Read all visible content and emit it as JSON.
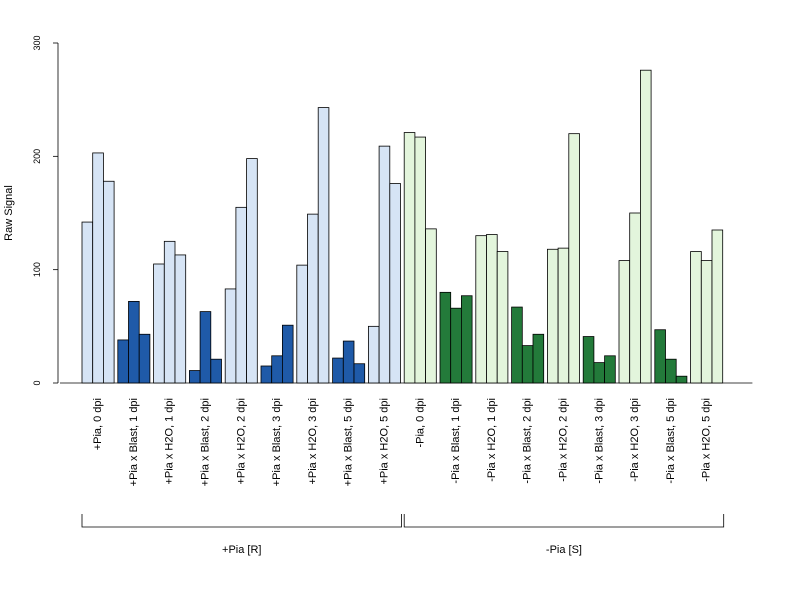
{
  "chart_data": {
    "type": "bar",
    "ylabel": "Raw Signal",
    "ylim": [
      0,
      300
    ],
    "yticks": [
      0,
      100,
      200,
      300
    ],
    "colors": {
      "plus_light": "#d6e4f5",
      "plus_dark": "#1f5aa8",
      "minus_light": "#e3f5dc",
      "minus_dark": "#237a3a"
    },
    "categories": [
      {
        "label": "+Pia, 0 dpi",
        "values": [
          142,
          203,
          178
        ],
        "color": "plus_light"
      },
      {
        "label": "+Pia x Blast, 1 dpi",
        "values": [
          38,
          72,
          43
        ],
        "color": "plus_dark"
      },
      {
        "label": "+Pia x H2O, 1 dpi",
        "values": [
          105,
          125,
          113
        ],
        "color": "plus_light"
      },
      {
        "label": "+Pia x Blast, 2 dpi",
        "values": [
          11,
          63,
          21
        ],
        "color": "plus_dark"
      },
      {
        "label": "+Pia x H2O, 2 dpi",
        "values": [
          83,
          155,
          198
        ],
        "color": "plus_light"
      },
      {
        "label": "+Pia x Blast, 3 dpi",
        "values": [
          15,
          24,
          51
        ],
        "color": "plus_dark"
      },
      {
        "label": "+Pia x H2O, 3 dpi",
        "values": [
          104,
          149,
          243
        ],
        "color": "plus_light"
      },
      {
        "label": "+Pia x Blast, 5 dpi",
        "values": [
          22,
          37,
          17
        ],
        "color": "plus_dark"
      },
      {
        "label": "+Pia x H2O, 5 dpi",
        "values": [
          50,
          209,
          176
        ],
        "color": "plus_light"
      },
      {
        "label": "-Pia, 0 dpi",
        "values": [
          221,
          217,
          136
        ],
        "color": "minus_light"
      },
      {
        "label": "-Pia x Blast, 1 dpi",
        "values": [
          80,
          66,
          77
        ],
        "color": "minus_dark"
      },
      {
        "label": "-Pia x H2O, 1 dpi",
        "values": [
          130,
          131,
          116
        ],
        "color": "minus_light"
      },
      {
        "label": "-Pia x Blast, 2 dpi",
        "values": [
          67,
          33,
          43
        ],
        "color": "minus_dark"
      },
      {
        "label": "-Pia x H2O, 2 dpi",
        "values": [
          118,
          119,
          220
        ],
        "color": "minus_light"
      },
      {
        "label": "-Pia x Blast, 3 dpi",
        "values": [
          41,
          18,
          24
        ],
        "color": "minus_dark"
      },
      {
        "label": "-Pia x H2O, 3 dpi",
        "values": [
          108,
          150,
          276
        ],
        "color": "minus_light"
      },
      {
        "label": "-Pia x Blast, 5 dpi",
        "values": [
          47,
          21,
          6
        ],
        "color": "minus_dark"
      },
      {
        "label": "-Pia x H2O, 5 dpi",
        "values": [
          116,
          108,
          135
        ],
        "color": "minus_light"
      }
    ],
    "groups": [
      {
        "label": "+Pia [R]",
        "from": 0,
        "to": 8
      },
      {
        "label": "-Pia [S]",
        "from": 9,
        "to": 17
      }
    ]
  }
}
